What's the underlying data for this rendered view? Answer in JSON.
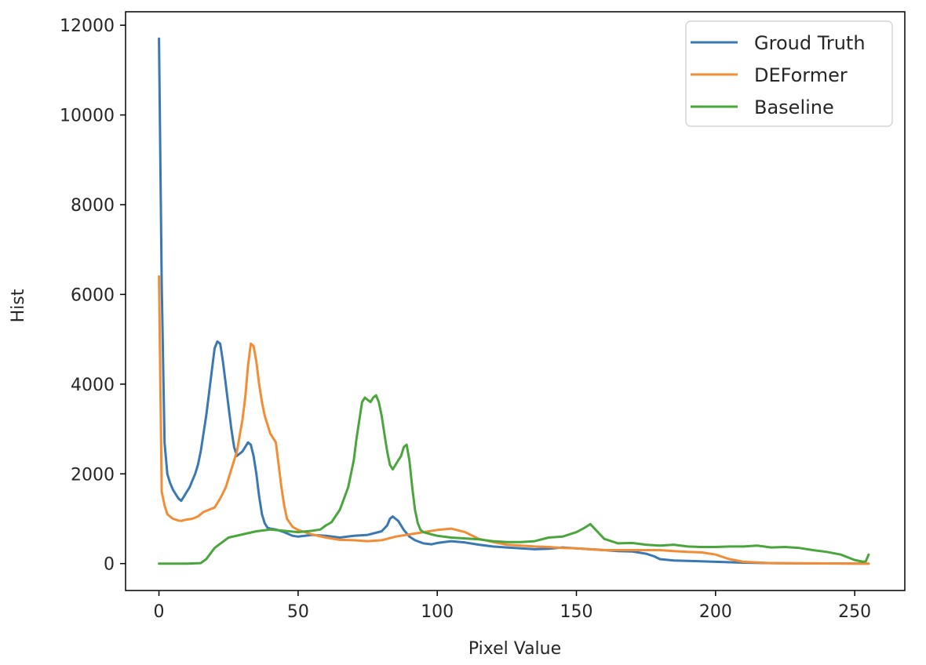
{
  "chart_data": {
    "type": "line",
    "title": "",
    "xlabel": "Pixel Value",
    "ylabel": "Hist",
    "xlim": [
      -12,
      268
    ],
    "ylim": [
      -600,
      12300
    ],
    "xticks": [
      0,
      50,
      100,
      150,
      200,
      250
    ],
    "yticks": [
      0,
      2000,
      4000,
      6000,
      8000,
      10000,
      12000
    ],
    "grid": false,
    "legend_position": "top-right",
    "series": [
      {
        "name": "Groud Truth",
        "color": "#3a78b4",
        "points": [
          [
            0,
            11700
          ],
          [
            1,
            6200
          ],
          [
            2,
            2700
          ],
          [
            3,
            2000
          ],
          [
            4,
            1800
          ],
          [
            5,
            1650
          ],
          [
            6,
            1550
          ],
          [
            7,
            1450
          ],
          [
            8,
            1400
          ],
          [
            9,
            1500
          ],
          [
            10,
            1600
          ],
          [
            11,
            1700
          ],
          [
            12,
            1850
          ],
          [
            13,
            2000
          ],
          [
            14,
            2200
          ],
          [
            15,
            2500
          ],
          [
            16,
            2900
          ],
          [
            17,
            3300
          ],
          [
            18,
            3800
          ],
          [
            19,
            4300
          ],
          [
            20,
            4800
          ],
          [
            21,
            4950
          ],
          [
            22,
            4900
          ],
          [
            23,
            4500
          ],
          [
            24,
            4000
          ],
          [
            25,
            3500
          ],
          [
            26,
            3000
          ],
          [
            27,
            2600
          ],
          [
            28,
            2400
          ],
          [
            29,
            2450
          ],
          [
            30,
            2500
          ],
          [
            31,
            2600
          ],
          [
            32,
            2700
          ],
          [
            33,
            2650
          ],
          [
            34,
            2400
          ],
          [
            35,
            2000
          ],
          [
            36,
            1500
          ],
          [
            37,
            1100
          ],
          [
            38,
            900
          ],
          [
            39,
            800
          ],
          [
            40,
            780
          ],
          [
            42,
            760
          ],
          [
            45,
            700
          ],
          [
            48,
            620
          ],
          [
            50,
            600
          ],
          [
            55,
            640
          ],
          [
            60,
            620
          ],
          [
            65,
            580
          ],
          [
            70,
            620
          ],
          [
            75,
            640
          ],
          [
            80,
            720
          ],
          [
            82,
            850
          ],
          [
            83,
            1000
          ],
          [
            84,
            1050
          ],
          [
            85,
            1000
          ],
          [
            86,
            950
          ],
          [
            88,
            750
          ],
          [
            90,
            600
          ],
          [
            92,
            520
          ],
          [
            95,
            450
          ],
          [
            98,
            430
          ],
          [
            100,
            460
          ],
          [
            105,
            500
          ],
          [
            110,
            470
          ],
          [
            115,
            420
          ],
          [
            120,
            380
          ],
          [
            125,
            360
          ],
          [
            130,
            340
          ],
          [
            135,
            320
          ],
          [
            140,
            330
          ],
          [
            145,
            360
          ],
          [
            150,
            340
          ],
          [
            155,
            320
          ],
          [
            160,
            300
          ],
          [
            165,
            280
          ],
          [
            170,
            270
          ],
          [
            175,
            220
          ],
          [
            178,
            160
          ],
          [
            180,
            100
          ],
          [
            185,
            70
          ],
          [
            190,
            60
          ],
          [
            200,
            40
          ],
          [
            210,
            20
          ],
          [
            220,
            10
          ],
          [
            230,
            5
          ],
          [
            240,
            3
          ],
          [
            255,
            0
          ]
        ]
      },
      {
        "name": "DEFormer",
        "color": "#f28c35",
        "points": [
          [
            0,
            6400
          ],
          [
            1,
            1600
          ],
          [
            2,
            1300
          ],
          [
            3,
            1100
          ],
          [
            4,
            1050
          ],
          [
            5,
            1000
          ],
          [
            6,
            980
          ],
          [
            7,
            960
          ],
          [
            8,
            950
          ],
          [
            9,
            970
          ],
          [
            10,
            980
          ],
          [
            12,
            1000
          ],
          [
            14,
            1050
          ],
          [
            16,
            1150
          ],
          [
            18,
            1200
          ],
          [
            20,
            1250
          ],
          [
            22,
            1450
          ],
          [
            24,
            1700
          ],
          [
            26,
            2100
          ],
          [
            28,
            2500
          ],
          [
            30,
            3200
          ],
          [
            31,
            3700
          ],
          [
            32,
            4400
          ],
          [
            33,
            4900
          ],
          [
            34,
            4850
          ],
          [
            35,
            4500
          ],
          [
            36,
            4000
          ],
          [
            37,
            3600
          ],
          [
            38,
            3300
          ],
          [
            40,
            2900
          ],
          [
            42,
            2700
          ],
          [
            43,
            2200
          ],
          [
            44,
            1700
          ],
          [
            45,
            1300
          ],
          [
            46,
            1000
          ],
          [
            48,
            820
          ],
          [
            50,
            750
          ],
          [
            55,
            650
          ],
          [
            60,
            580
          ],
          [
            65,
            530
          ],
          [
            70,
            520
          ],
          [
            75,
            500
          ],
          [
            80,
            520
          ],
          [
            85,
            600
          ],
          [
            90,
            650
          ],
          [
            95,
            700
          ],
          [
            100,
            750
          ],
          [
            105,
            780
          ],
          [
            110,
            700
          ],
          [
            115,
            550
          ],
          [
            120,
            480
          ],
          [
            125,
            420
          ],
          [
            130,
            400
          ],
          [
            135,
            380
          ],
          [
            140,
            370
          ],
          [
            145,
            350
          ],
          [
            150,
            340
          ],
          [
            155,
            320
          ],
          [
            160,
            300
          ],
          [
            170,
            300
          ],
          [
            180,
            300
          ],
          [
            185,
            280
          ],
          [
            190,
            260
          ],
          [
            195,
            250
          ],
          [
            200,
            200
          ],
          [
            205,
            100
          ],
          [
            210,
            40
          ],
          [
            220,
            10
          ],
          [
            230,
            5
          ],
          [
            255,
            0
          ]
        ]
      },
      {
        "name": "Baseline",
        "color": "#4aa63c",
        "points": [
          [
            0,
            0
          ],
          [
            5,
            0
          ],
          [
            10,
            0
          ],
          [
            15,
            10
          ],
          [
            17,
            100
          ],
          [
            20,
            350
          ],
          [
            25,
            580
          ],
          [
            30,
            650
          ],
          [
            35,
            720
          ],
          [
            40,
            760
          ],
          [
            45,
            730
          ],
          [
            50,
            700
          ],
          [
            55,
            730
          ],
          [
            58,
            760
          ],
          [
            60,
            850
          ],
          [
            62,
            920
          ],
          [
            65,
            1200
          ],
          [
            68,
            1700
          ],
          [
            70,
            2300
          ],
          [
            71,
            2800
          ],
          [
            72,
            3200
          ],
          [
            73,
            3600
          ],
          [
            74,
            3700
          ],
          [
            75,
            3650
          ],
          [
            76,
            3600
          ],
          [
            77,
            3700
          ],
          [
            78,
            3750
          ],
          [
            79,
            3600
          ],
          [
            80,
            3300
          ],
          [
            81,
            2900
          ],
          [
            82,
            2500
          ],
          [
            83,
            2200
          ],
          [
            84,
            2100
          ],
          [
            85,
            2200
          ],
          [
            86,
            2300
          ],
          [
            87,
            2400
          ],
          [
            88,
            2600
          ],
          [
            89,
            2650
          ],
          [
            90,
            2300
          ],
          [
            91,
            1700
          ],
          [
            92,
            1200
          ],
          [
            93,
            900
          ],
          [
            94,
            750
          ],
          [
            95,
            700
          ],
          [
            98,
            650
          ],
          [
            100,
            620
          ],
          [
            105,
            580
          ],
          [
            110,
            560
          ],
          [
            115,
            540
          ],
          [
            120,
            500
          ],
          [
            125,
            480
          ],
          [
            130,
            480
          ],
          [
            135,
            500
          ],
          [
            140,
            580
          ],
          [
            145,
            600
          ],
          [
            150,
            700
          ],
          [
            153,
            800
          ],
          [
            155,
            880
          ],
          [
            157,
            750
          ],
          [
            160,
            550
          ],
          [
            165,
            450
          ],
          [
            170,
            460
          ],
          [
            175,
            420
          ],
          [
            180,
            400
          ],
          [
            185,
            420
          ],
          [
            190,
            380
          ],
          [
            195,
            370
          ],
          [
            200,
            370
          ],
          [
            205,
            380
          ],
          [
            210,
            380
          ],
          [
            215,
            400
          ],
          [
            220,
            360
          ],
          [
            225,
            370
          ],
          [
            230,
            350
          ],
          [
            235,
            300
          ],
          [
            240,
            260
          ],
          [
            245,
            200
          ],
          [
            250,
            80
          ],
          [
            253,
            40
          ],
          [
            254,
            50
          ],
          [
            255,
            200
          ]
        ]
      }
    ]
  }
}
